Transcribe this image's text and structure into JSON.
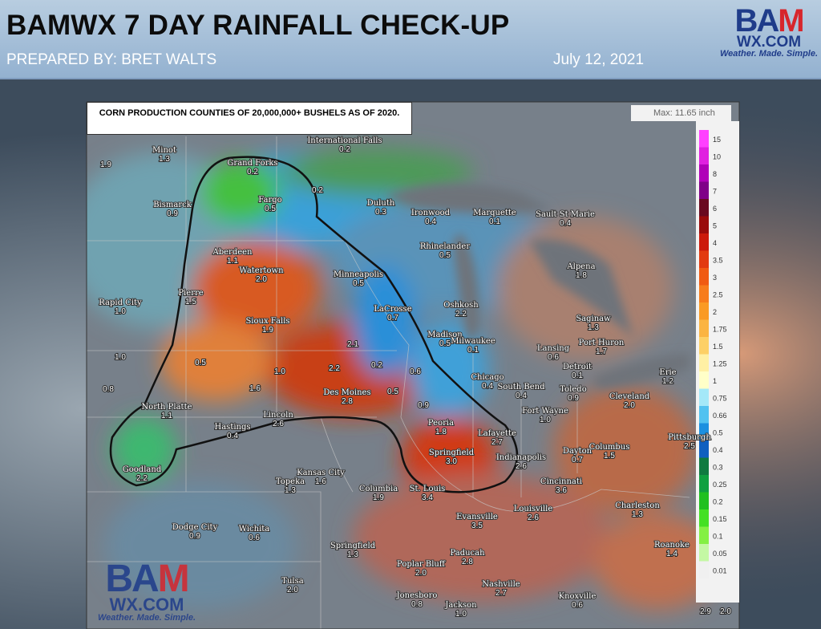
{
  "header": {
    "title": "BAMWX 7 DAY RAINFALL CHECK-UP",
    "prepared_by": "PREPARED BY:  BRET WALTS",
    "date": "July 12, 2021"
  },
  "logo": {
    "brand": "BAM",
    "site": "WX.COM",
    "tagline": "Weather. Made. Simple."
  },
  "map": {
    "caption": "CORN PRODUCTION COUNTIES OF 20,000,000+ BUSHELS AS OF 2020.",
    "max_label": "Max: 11.65 inch",
    "legend": [
      {
        "label": "15",
        "color": "#ff40ff"
      },
      {
        "label": "10",
        "color": "#e020e0"
      },
      {
        "label": "8",
        "color": "#b000b8"
      },
      {
        "label": "7",
        "color": "#800088"
      },
      {
        "label": "6",
        "color": "#6a0a20"
      },
      {
        "label": "5",
        "color": "#9a0c0c"
      },
      {
        "label": "4",
        "color": "#cc1a0c"
      },
      {
        "label": "3.5",
        "color": "#e23a10"
      },
      {
        "label": "3",
        "color": "#f05a12"
      },
      {
        "label": "2.5",
        "color": "#f77c1c"
      },
      {
        "label": "2",
        "color": "#fa9a24"
      },
      {
        "label": "1.75",
        "color": "#fbb442"
      },
      {
        "label": "1.5",
        "color": "#fdd066"
      },
      {
        "label": "1.25",
        "color": "#fff0a4"
      },
      {
        "label": "1",
        "color": "#ffffc8"
      },
      {
        "label": "0.75",
        "color": "#a4e8f8"
      },
      {
        "label": "0.66",
        "color": "#52c2f0"
      },
      {
        "label": "0.5",
        "color": "#1c90e0"
      },
      {
        "label": "0.4",
        "color": "#1060c0"
      },
      {
        "label": "0.3",
        "color": "#107a40"
      },
      {
        "label": "0.25",
        "color": "#10a040"
      },
      {
        "label": "0.2",
        "color": "#20c020"
      },
      {
        "label": "0.15",
        "color": "#44e024"
      },
      {
        "label": "0.1",
        "color": "#84f044"
      },
      {
        "label": "0.05",
        "color": "#c4f8a4"
      },
      {
        "label": "0.01",
        "color": "#f0f0f0"
      }
    ],
    "cities": [
      {
        "name": "Minot",
        "value": "1.3"
      },
      {
        "name": "International Falls",
        "value": "0.2"
      },
      {
        "name": "Grand Forks",
        "value": "0.2"
      },
      {
        "name": "Fargo",
        "value": "0.5"
      },
      {
        "name": "Bismarck",
        "value": "0.9"
      },
      {
        "name": "Duluth",
        "value": "0.3"
      },
      {
        "name": "Ironwood",
        "value": "0.4"
      },
      {
        "name": "Marquette",
        "value": "0.1"
      },
      {
        "name": "Sault St Marie",
        "value": "0.4"
      },
      {
        "name": "Aberdeen",
        "value": "1.1"
      },
      {
        "name": "Watertown",
        "value": "2.0"
      },
      {
        "name": "Minneapolis",
        "value": "0.5"
      },
      {
        "name": "Rhinelander",
        "value": "0.5"
      },
      {
        "name": "Alpena",
        "value": "1.8"
      },
      {
        "name": "Pierre",
        "value": "1.5"
      },
      {
        "name": "Rapid City",
        "value": "1.0"
      },
      {
        "name": "Sioux Falls",
        "value": "1.9"
      },
      {
        "name": "LaCrosse",
        "value": "0.7"
      },
      {
        "name": "Oshkosh",
        "value": "2.2"
      },
      {
        "name": "Saginaw",
        "value": "1.3"
      },
      {
        "name": "Madison",
        "value": "0.5"
      },
      {
        "name": "Milwaukee",
        "value": "0.1"
      },
      {
        "name": "Lansing",
        "value": "0.6"
      },
      {
        "name": "Port Huron",
        "value": "1.7"
      },
      {
        "name": "Detroit",
        "value": "0.1"
      },
      {
        "name": "Chicago",
        "value": "0.4"
      },
      {
        "name": "South Bend",
        "value": "0.4"
      },
      {
        "name": "Toledo",
        "value": "0.9"
      },
      {
        "name": "Cleveland",
        "value": "2.0"
      },
      {
        "name": "Erie",
        "value": "1.2"
      },
      {
        "name": "Des Moines",
        "value": "2.8"
      },
      {
        "name": "North Platte",
        "value": "1.1"
      },
      {
        "name": "Lincoln",
        "value": "2.6"
      },
      {
        "name": "Hastings",
        "value": "0.4"
      },
      {
        "name": "Fort Wayne",
        "value": "1.0"
      },
      {
        "name": "Peoria",
        "value": "1.8"
      },
      {
        "name": "Lafayette",
        "value": "2.7"
      },
      {
        "name": "Springfield",
        "value": "3.0"
      },
      {
        "name": "Indianapolis",
        "value": "2.6"
      },
      {
        "name": "Dayton",
        "value": "0.7"
      },
      {
        "name": "Columbus",
        "value": "1.5"
      },
      {
        "name": "Pittsburgh",
        "value": "2.5"
      },
      {
        "name": "Goodland",
        "value": "2.2"
      },
      {
        "name": "Kansas City",
        "value": "1.6"
      },
      {
        "name": "Topeka",
        "value": "1.3"
      },
      {
        "name": "Columbia",
        "value": "1.9"
      },
      {
        "name": "St. Louis",
        "value": "3.4"
      },
      {
        "name": "Cincinnati",
        "value": "3.6"
      },
      {
        "name": "Louisville",
        "value": "2.6"
      },
      {
        "name": "Evansville",
        "value": "3.5"
      },
      {
        "name": "Charleston",
        "value": "1.3"
      },
      {
        "name": "Dodge City",
        "value": "0.9"
      },
      {
        "name": "Wichita",
        "value": "0.6"
      },
      {
        "name": "Springfield",
        "value": "1.3"
      },
      {
        "name": "Paducah",
        "value": "2.8"
      },
      {
        "name": "Roanoke",
        "value": "1.4"
      },
      {
        "name": "Tulsa",
        "value": "2.0"
      },
      {
        "name": "Poplar Bluff",
        "value": "2.0"
      },
      {
        "name": "Nashville",
        "value": "2.7"
      },
      {
        "name": "Knoxville",
        "value": "0.6"
      },
      {
        "name": "Jonesboro",
        "value": "0.8"
      },
      {
        "name": "Jackson",
        "value": "1.0"
      }
    ],
    "values": [
      "0.5",
      "2.1",
      "2.2",
      "0.2",
      "0.6",
      "1.0",
      "1.6",
      "0.5",
      "0.9",
      "0.2",
      "1.9",
      "1.0",
      "0.8",
      "2.9",
      "2.0"
    ]
  }
}
